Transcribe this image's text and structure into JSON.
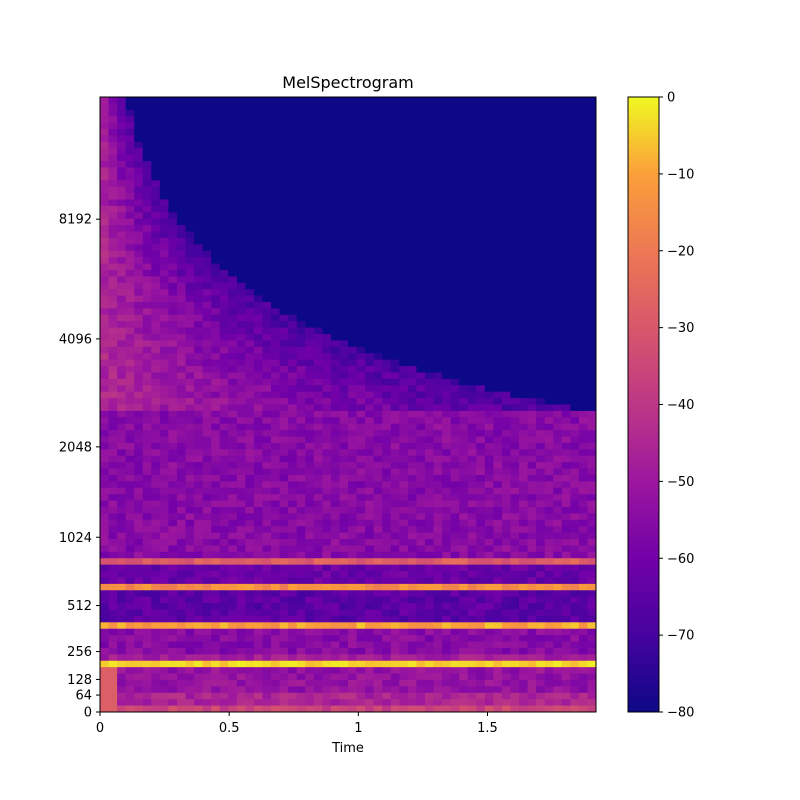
{
  "chart_data": {
    "type": "heatmap",
    "title": "MelSpectrogram",
    "xlabel": "Time",
    "ylabel": "",
    "x_axis": {
      "ticks": [
        0,
        0.5,
        1,
        1.5
      ],
      "tick_labels": [
        "0",
        "0.5",
        "1",
        "1.5"
      ],
      "range": [
        0,
        1.92
      ]
    },
    "y_axis": {
      "scale": "mel",
      "tick_labels": [
        "0",
        "64",
        "128",
        "256",
        "512",
        "1024",
        "2048",
        "4096",
        "8192"
      ],
      "range_hz": [
        0,
        16000
      ]
    },
    "colorbar": {
      "colormap": "plasma",
      "range": [
        -80,
        0
      ],
      "ticks": [
        0,
        -10,
        -20,
        -30,
        -40,
        -50,
        -60,
        -70,
        -80
      ],
      "tick_labels": [
        "0",
        "−10",
        "−20",
        "−30",
        "−40",
        "−50",
        "−60",
        "−70",
        "−80"
      ]
    },
    "grid": false,
    "note": "",
    "band_levels_db": [
      {
        "hz_range": [
          0,
          30
        ],
        "db": -36
      },
      {
        "hz_range": [
          30,
          64
        ],
        "db": -46
      },
      {
        "hz_range": [
          64,
          128
        ],
        "db": -52
      },
      {
        "hz_range": [
          128,
          180
        ],
        "db": -52
      },
      {
        "hz_range": [
          180,
          220
        ],
        "db": -6
      },
      {
        "hz_range": [
          220,
          256
        ],
        "db": -48
      },
      {
        "hz_range": [
          256,
          370
        ],
        "db": -55
      },
      {
        "hz_range": [
          370,
          420
        ],
        "db": -10
      },
      {
        "hz_range": [
          420,
          600
        ],
        "db": -65
      },
      {
        "hz_range": [
          600,
          650
        ],
        "db": -15
      },
      {
        "hz_range": [
          650,
          800
        ],
        "db": -62
      },
      {
        "hz_range": [
          800,
          850
        ],
        "db": -28
      },
      {
        "hz_range": [
          850,
          2600
        ],
        "db": -55
      },
      {
        "hz_range": [
          2600,
          16000
        ],
        "db": -70
      }
    ]
  }
}
